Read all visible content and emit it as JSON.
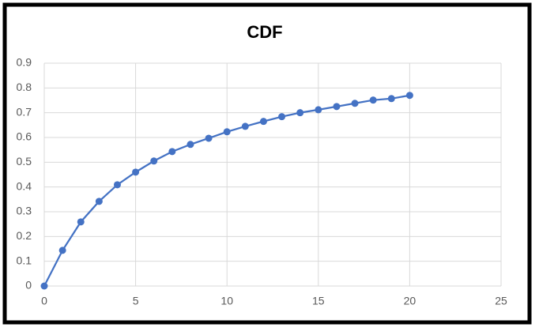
{
  "chart_data": {
    "type": "scatter-line",
    "title": "CDF",
    "x": [
      0,
      1,
      2,
      3,
      4,
      5,
      6,
      7,
      8,
      9,
      10,
      11,
      12,
      13,
      14,
      15,
      16,
      17,
      18,
      19,
      20
    ],
    "series": [
      {
        "color": "#4472c4",
        "values": [
          0,
          0.144,
          0.259,
          0.342,
          0.409,
          0.46,
          0.505,
          0.543,
          0.572,
          0.597,
          0.623,
          0.645,
          0.665,
          0.684,
          0.7,
          0.712,
          0.725,
          0.738,
          0.751,
          0.757,
          0.77
        ]
      }
    ],
    "xlim": [
      0,
      25
    ],
    "xticks": [
      0,
      5,
      10,
      15,
      20,
      25
    ],
    "ylim": [
      0,
      0.9
    ],
    "yticks": [
      0,
      0.1,
      0.2,
      0.3,
      0.4,
      0.5,
      0.6,
      0.7,
      0.8,
      0.9
    ],
    "grid": true
  }
}
